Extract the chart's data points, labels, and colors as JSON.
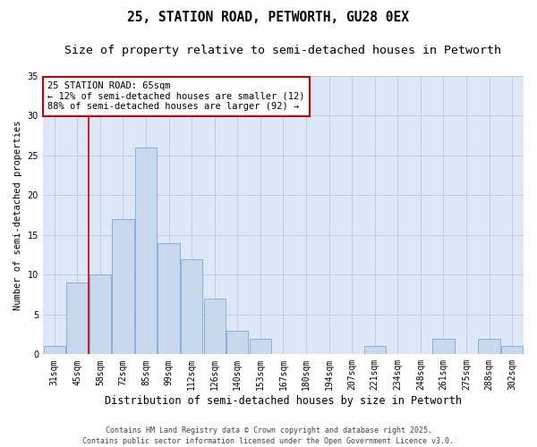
{
  "title": "25, STATION ROAD, PETWORTH, GU28 0EX",
  "subtitle": "Size of property relative to semi-detached houses in Petworth",
  "xlabel": "Distribution of semi-detached houses by size in Petworth",
  "ylabel": "Number of semi-detached properties",
  "categories": [
    "31sqm",
    "45sqm",
    "58sqm",
    "72sqm",
    "85sqm",
    "99sqm",
    "112sqm",
    "126sqm",
    "140sqm",
    "153sqm",
    "167sqm",
    "180sqm",
    "194sqm",
    "207sqm",
    "221sqm",
    "234sqm",
    "248sqm",
    "261sqm",
    "275sqm",
    "288sqm",
    "302sqm"
  ],
  "values": [
    1,
    9,
    10,
    17,
    26,
    14,
    12,
    7,
    3,
    2,
    0,
    0,
    0,
    0,
    1,
    0,
    0,
    2,
    0,
    2,
    1
  ],
  "bar_color": "#c8d8ed",
  "bar_edgecolor": "#7aa8d4",
  "vline_color": "#cc0000",
  "vline_x": 1.5,
  "annotation_text": "25 STATION ROAD: 65sqm\n← 12% of semi-detached houses are smaller (12)\n88% of semi-detached houses are larger (92) →",
  "annotation_box_edgecolor": "#cc0000",
  "ylim": [
    0,
    35
  ],
  "yticks": [
    0,
    5,
    10,
    15,
    20,
    25,
    30,
    35
  ],
  "background_color": "#dce8f5",
  "grid_color": "#b8c8d8",
  "footer_text": "Contains HM Land Registry data © Crown copyright and database right 2025.\nContains public sector information licensed under the Open Government Licence v3.0.",
  "title_fontsize": 10.5,
  "subtitle_fontsize": 9.5,
  "xlabel_fontsize": 8.5,
  "ylabel_fontsize": 7.5,
  "tick_fontsize": 7,
  "annot_fontsize": 7.5,
  "footer_fontsize": 6
}
